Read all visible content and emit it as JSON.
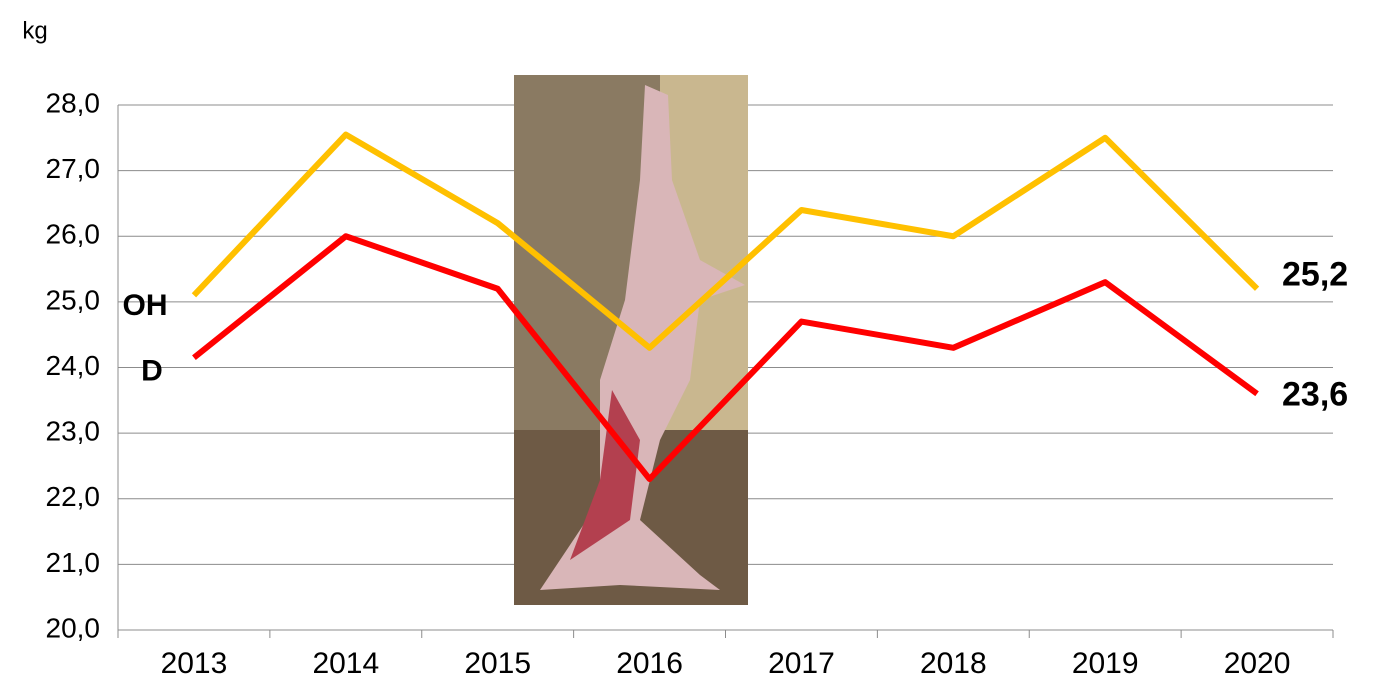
{
  "chart_data": {
    "type": "line",
    "y_label": "kg",
    "categories": [
      "2013",
      "2014",
      "2015",
      "2016",
      "2017",
      "2018",
      "2019",
      "2020"
    ],
    "series": [
      {
        "name": "OH",
        "color": "#ffc000",
        "values": [
          25.1,
          27.55,
          26.2,
          24.3,
          26.4,
          26.0,
          27.5,
          25.2
        ],
        "value_labels": [
          null,
          null,
          null,
          null,
          null,
          null,
          null,
          "25,2"
        ]
      },
      {
        "name": "D",
        "color": "#ff0000",
        "values": [
          24.15,
          26.0,
          25.2,
          22.3,
          24.7,
          24.3,
          25.3,
          23.6
        ],
        "value_labels": [
          null,
          null,
          null,
          null,
          null,
          null,
          null,
          "23,6"
        ]
      }
    ],
    "ylim": [
      20,
      28
    ],
    "yticks": [
      {
        "value": 20,
        "label": "20,0"
      },
      {
        "value": 21,
        "label": "21,0"
      },
      {
        "value": 22,
        "label": "22,0"
      },
      {
        "value": 23,
        "label": "23,0"
      },
      {
        "value": 24,
        "label": "24,0"
      },
      {
        "value": 25,
        "label": "25,0"
      },
      {
        "value": 26,
        "label": "26,0"
      },
      {
        "value": 27,
        "label": "27,0"
      },
      {
        "value": 28,
        "label": "28,0"
      }
    ],
    "grid": true
  }
}
